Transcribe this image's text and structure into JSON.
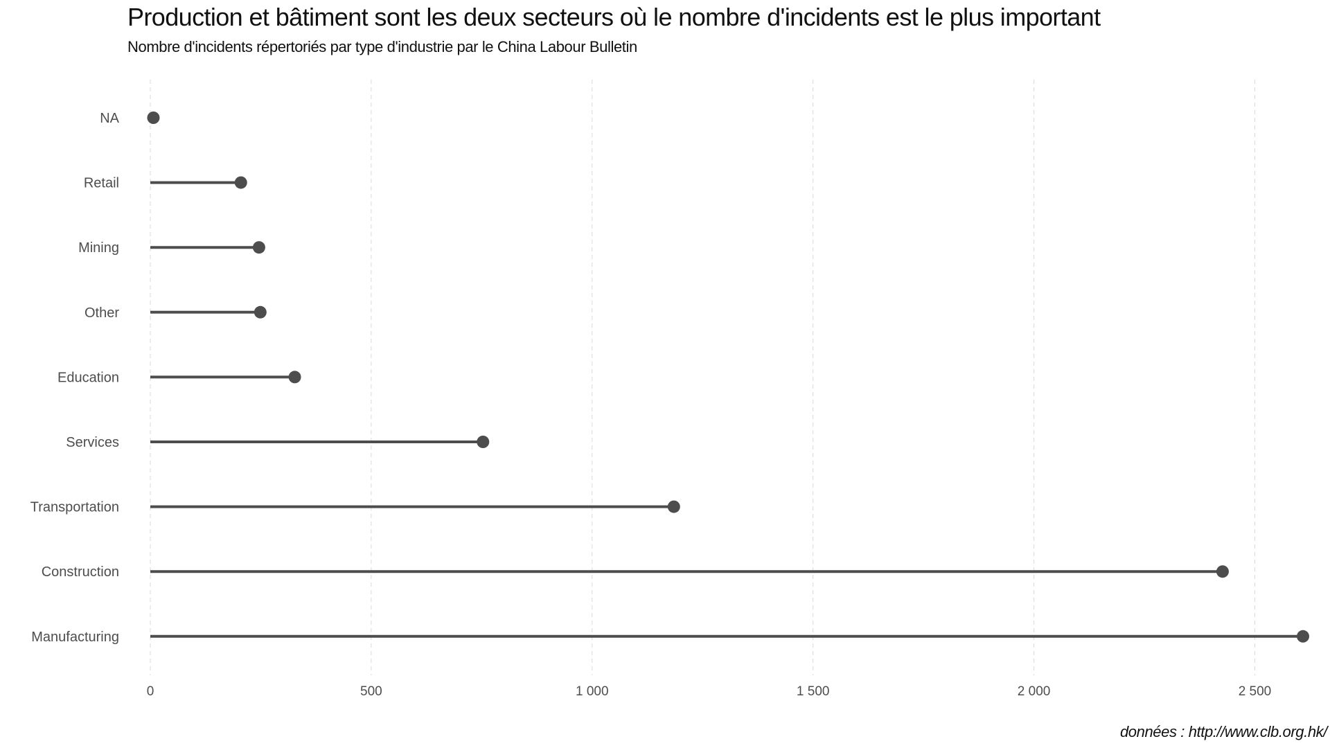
{
  "chart_data": {
    "type": "lollipop",
    "title": "Production et bâtiment sont les deux secteurs où le nombre d'incidents est le plus important",
    "subtitle": "Nombre d'incidents répertoriés par type d'industrie par le China Labour Bulletin",
    "caption": "données : http://www.clb.org.hk/",
    "xlabel": "",
    "ylabel": "",
    "categories": [
      "NA",
      "Retail",
      "Mining",
      "Other",
      "Education",
      "Services",
      "Transportation",
      "Construction",
      "Manufacturing"
    ],
    "values": [
      7,
      205,
      246,
      249,
      327,
      753,
      1185,
      2427,
      2609
    ],
    "xlim": [
      0,
      2609
    ],
    "x_ticks": [
      0,
      500,
      1000,
      1500,
      2000,
      2500
    ],
    "x_tick_labels": [
      "0",
      "500",
      "1 000",
      "1 500",
      "2 000",
      "2 500"
    ],
    "grid": "vertical dashed",
    "colors": {
      "mark": "#4d4d4d",
      "grid": "#d9d9d9",
      "text": "#4d4d4d"
    }
  }
}
